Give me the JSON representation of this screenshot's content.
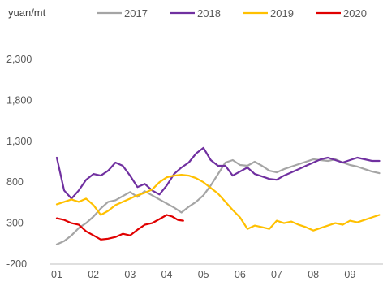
{
  "chart_data": {
    "type": "line",
    "ylabel": "yuan/mt",
    "ylim": [
      -200,
      2300
    ],
    "yticks": [
      -200,
      300,
      800,
      1300,
      1800,
      2300
    ],
    "ytick_labels": [
      "-200",
      "300",
      "800",
      "1,300",
      "1,800",
      "2,300"
    ],
    "xlim": [
      1,
      9.9
    ],
    "xticks": [
      1,
      2,
      3,
      4,
      5,
      6,
      7,
      8,
      9
    ],
    "xtick_labels": [
      "01",
      "02",
      "03",
      "04",
      "05",
      "06",
      "07",
      "08",
      "09"
    ],
    "grid": false,
    "legend_position": "top",
    "series": [
      {
        "name": "2017",
        "color": "#a5a5a5",
        "points": [
          [
            1.0,
            40
          ],
          [
            1.2,
            80
          ],
          [
            1.4,
            150
          ],
          [
            1.6,
            240
          ],
          [
            1.8,
            300
          ],
          [
            2.0,
            380
          ],
          [
            2.2,
            480
          ],
          [
            2.4,
            560
          ],
          [
            2.6,
            580
          ],
          [
            2.8,
            630
          ],
          [
            3.0,
            680
          ],
          [
            3.2,
            620
          ],
          [
            3.4,
            690
          ],
          [
            3.6,
            640
          ],
          [
            3.8,
            590
          ],
          [
            4.0,
            540
          ],
          [
            4.2,
            490
          ],
          [
            4.4,
            430
          ],
          [
            4.6,
            500
          ],
          [
            4.8,
            560
          ],
          [
            5.0,
            640
          ],
          [
            5.2,
            760
          ],
          [
            5.4,
            900
          ],
          [
            5.6,
            1040
          ],
          [
            5.8,
            1070
          ],
          [
            6.0,
            1010
          ],
          [
            6.2,
            1000
          ],
          [
            6.4,
            1050
          ],
          [
            6.6,
            1000
          ],
          [
            6.8,
            940
          ],
          [
            7.0,
            920
          ],
          [
            7.2,
            960
          ],
          [
            7.4,
            990
          ],
          [
            7.6,
            1020
          ],
          [
            7.8,
            1050
          ],
          [
            8.0,
            1080
          ],
          [
            8.2,
            1070
          ],
          [
            8.4,
            1060
          ],
          [
            8.6,
            1080
          ],
          [
            8.8,
            1040
          ],
          [
            9.0,
            1010
          ],
          [
            9.2,
            990
          ],
          [
            9.4,
            960
          ],
          [
            9.6,
            930
          ],
          [
            9.8,
            910
          ]
        ]
      },
      {
        "name": "2018",
        "color": "#7030a0",
        "points": [
          [
            1.0,
            1100
          ],
          [
            1.1,
            900
          ],
          [
            1.2,
            700
          ],
          [
            1.4,
            600
          ],
          [
            1.6,
            700
          ],
          [
            1.8,
            830
          ],
          [
            2.0,
            900
          ],
          [
            2.2,
            880
          ],
          [
            2.4,
            940
          ],
          [
            2.6,
            1040
          ],
          [
            2.8,
            1000
          ],
          [
            3.0,
            880
          ],
          [
            3.2,
            740
          ],
          [
            3.4,
            780
          ],
          [
            3.6,
            700
          ],
          [
            3.8,
            650
          ],
          [
            4.0,
            760
          ],
          [
            4.2,
            900
          ],
          [
            4.4,
            980
          ],
          [
            4.6,
            1040
          ],
          [
            4.8,
            1150
          ],
          [
            5.0,
            1220
          ],
          [
            5.2,
            1070
          ],
          [
            5.4,
            1000
          ],
          [
            5.6,
            1000
          ],
          [
            5.8,
            880
          ],
          [
            6.0,
            930
          ],
          [
            6.2,
            980
          ],
          [
            6.4,
            900
          ],
          [
            6.6,
            870
          ],
          [
            6.8,
            840
          ],
          [
            7.0,
            830
          ],
          [
            7.2,
            880
          ],
          [
            7.4,
            920
          ],
          [
            7.6,
            960
          ],
          [
            7.8,
            1000
          ],
          [
            8.0,
            1040
          ],
          [
            8.2,
            1080
          ],
          [
            8.4,
            1100
          ],
          [
            8.6,
            1070
          ],
          [
            8.8,
            1040
          ],
          [
            9.0,
            1070
          ],
          [
            9.2,
            1100
          ],
          [
            9.4,
            1080
          ],
          [
            9.6,
            1060
          ],
          [
            9.8,
            1060
          ]
        ]
      },
      {
        "name": "2019",
        "color": "#ffc000",
        "points": [
          [
            1.0,
            530
          ],
          [
            1.2,
            560
          ],
          [
            1.4,
            590
          ],
          [
            1.6,
            560
          ],
          [
            1.8,
            600
          ],
          [
            2.0,
            520
          ],
          [
            2.2,
            400
          ],
          [
            2.4,
            450
          ],
          [
            2.6,
            520
          ],
          [
            2.8,
            560
          ],
          [
            3.0,
            600
          ],
          [
            3.2,
            640
          ],
          [
            3.4,
            670
          ],
          [
            3.6,
            710
          ],
          [
            3.8,
            800
          ],
          [
            4.0,
            860
          ],
          [
            4.2,
            880
          ],
          [
            4.4,
            890
          ],
          [
            4.6,
            880
          ],
          [
            4.8,
            850
          ],
          [
            5.0,
            800
          ],
          [
            5.2,
            730
          ],
          [
            5.4,
            660
          ],
          [
            5.6,
            560
          ],
          [
            5.8,
            460
          ],
          [
            6.0,
            370
          ],
          [
            6.2,
            230
          ],
          [
            6.4,
            270
          ],
          [
            6.6,
            250
          ],
          [
            6.8,
            230
          ],
          [
            7.0,
            330
          ],
          [
            7.2,
            300
          ],
          [
            7.4,
            320
          ],
          [
            7.6,
            280
          ],
          [
            7.8,
            250
          ],
          [
            8.0,
            210
          ],
          [
            8.2,
            240
          ],
          [
            8.4,
            270
          ],
          [
            8.6,
            300
          ],
          [
            8.8,
            280
          ],
          [
            9.0,
            330
          ],
          [
            9.2,
            310
          ],
          [
            9.4,
            340
          ],
          [
            9.6,
            370
          ],
          [
            9.8,
            400
          ]
        ]
      },
      {
        "name": "2020",
        "color": "#e00000",
        "points": [
          [
            1.0,
            360
          ],
          [
            1.2,
            340
          ],
          [
            1.4,
            300
          ],
          [
            1.6,
            280
          ],
          [
            1.8,
            200
          ],
          [
            2.0,
            150
          ],
          [
            2.2,
            100
          ],
          [
            2.4,
            110
          ],
          [
            2.6,
            130
          ],
          [
            2.8,
            170
          ],
          [
            3.0,
            150
          ],
          [
            3.2,
            220
          ],
          [
            3.4,
            280
          ],
          [
            3.6,
            300
          ],
          [
            3.8,
            350
          ],
          [
            4.0,
            400
          ],
          [
            4.15,
            380
          ],
          [
            4.3,
            340
          ],
          [
            4.45,
            330
          ]
        ]
      }
    ]
  }
}
